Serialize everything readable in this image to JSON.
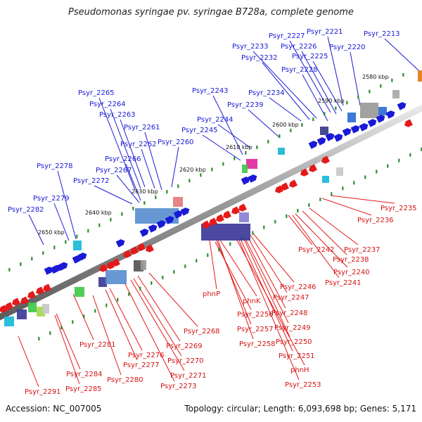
{
  "title": "Pseudomonas syringae pv. syringae B728a, complete genome",
  "footer": {
    "accession": "Accession: NC_007005",
    "summary": "Topology: circular; Length: 6,093,698 bp; Genes: 5,171"
  },
  "colors": {
    "forward_gene": "#1a1ad6",
    "reverse_gene": "#e41a1a",
    "backbone": "#8c8c8c",
    "tick_mark": "#2e8b2e"
  },
  "tick_labels": [
    "2580 kbp",
    "2590 kbp",
    "2600 kbp",
    "2610 kbp",
    "2620 kbp",
    "2630 kbp",
    "2640 kbp",
    "2650 kbp"
  ],
  "forward_genes": [
    "Psyr_2213",
    "Psyr_2221",
    "Psyr_2227",
    "Psyr_2220",
    "Psyr_2226",
    "Psyr_2233",
    "Psyr_2225",
    "Psyr_2232",
    "Psyr_2228",
    "Psyr_2243",
    "Psyr_2234",
    "Psyr_2265",
    "Psyr_2239",
    "Psyr_2264",
    "Psyr_2263",
    "Psyr_2244",
    "Psyr_2261",
    "Psyr_2245",
    "Psyr_2262",
    "Psyr_2260",
    "Psyr_2266",
    "Psyr_2278",
    "Psyr_2267",
    "Psyr_2272",
    "Psyr_2279",
    "Psyr_2282"
  ],
  "reverse_genes": [
    "Psyr_2235",
    "Psyr_2236",
    "Psyr_2242",
    "Psyr_2237",
    "Psyr_2238",
    "Psyr_2240",
    "Psyr_2241",
    "Psyr_2246",
    "phnP",
    "Psyr_2247",
    "phnK",
    "Psyr_2248",
    "Psyr_2256",
    "Psyr_2249",
    "Psyr_2257",
    "Psyr_2268",
    "Psyr_2250",
    "Psyr_2258",
    "Psyr_2251",
    "Psyr_2269",
    "Psyr_2281",
    "phnH",
    "Psyr_2276",
    "Psyr_2270",
    "Psyr_2277",
    "Psyr_2271",
    "Psyr_2284",
    "Psyr_2280",
    "Psyr_2273",
    "Psyr_2253",
    "Psyr_2285",
    "Psyr_2291"
  ]
}
